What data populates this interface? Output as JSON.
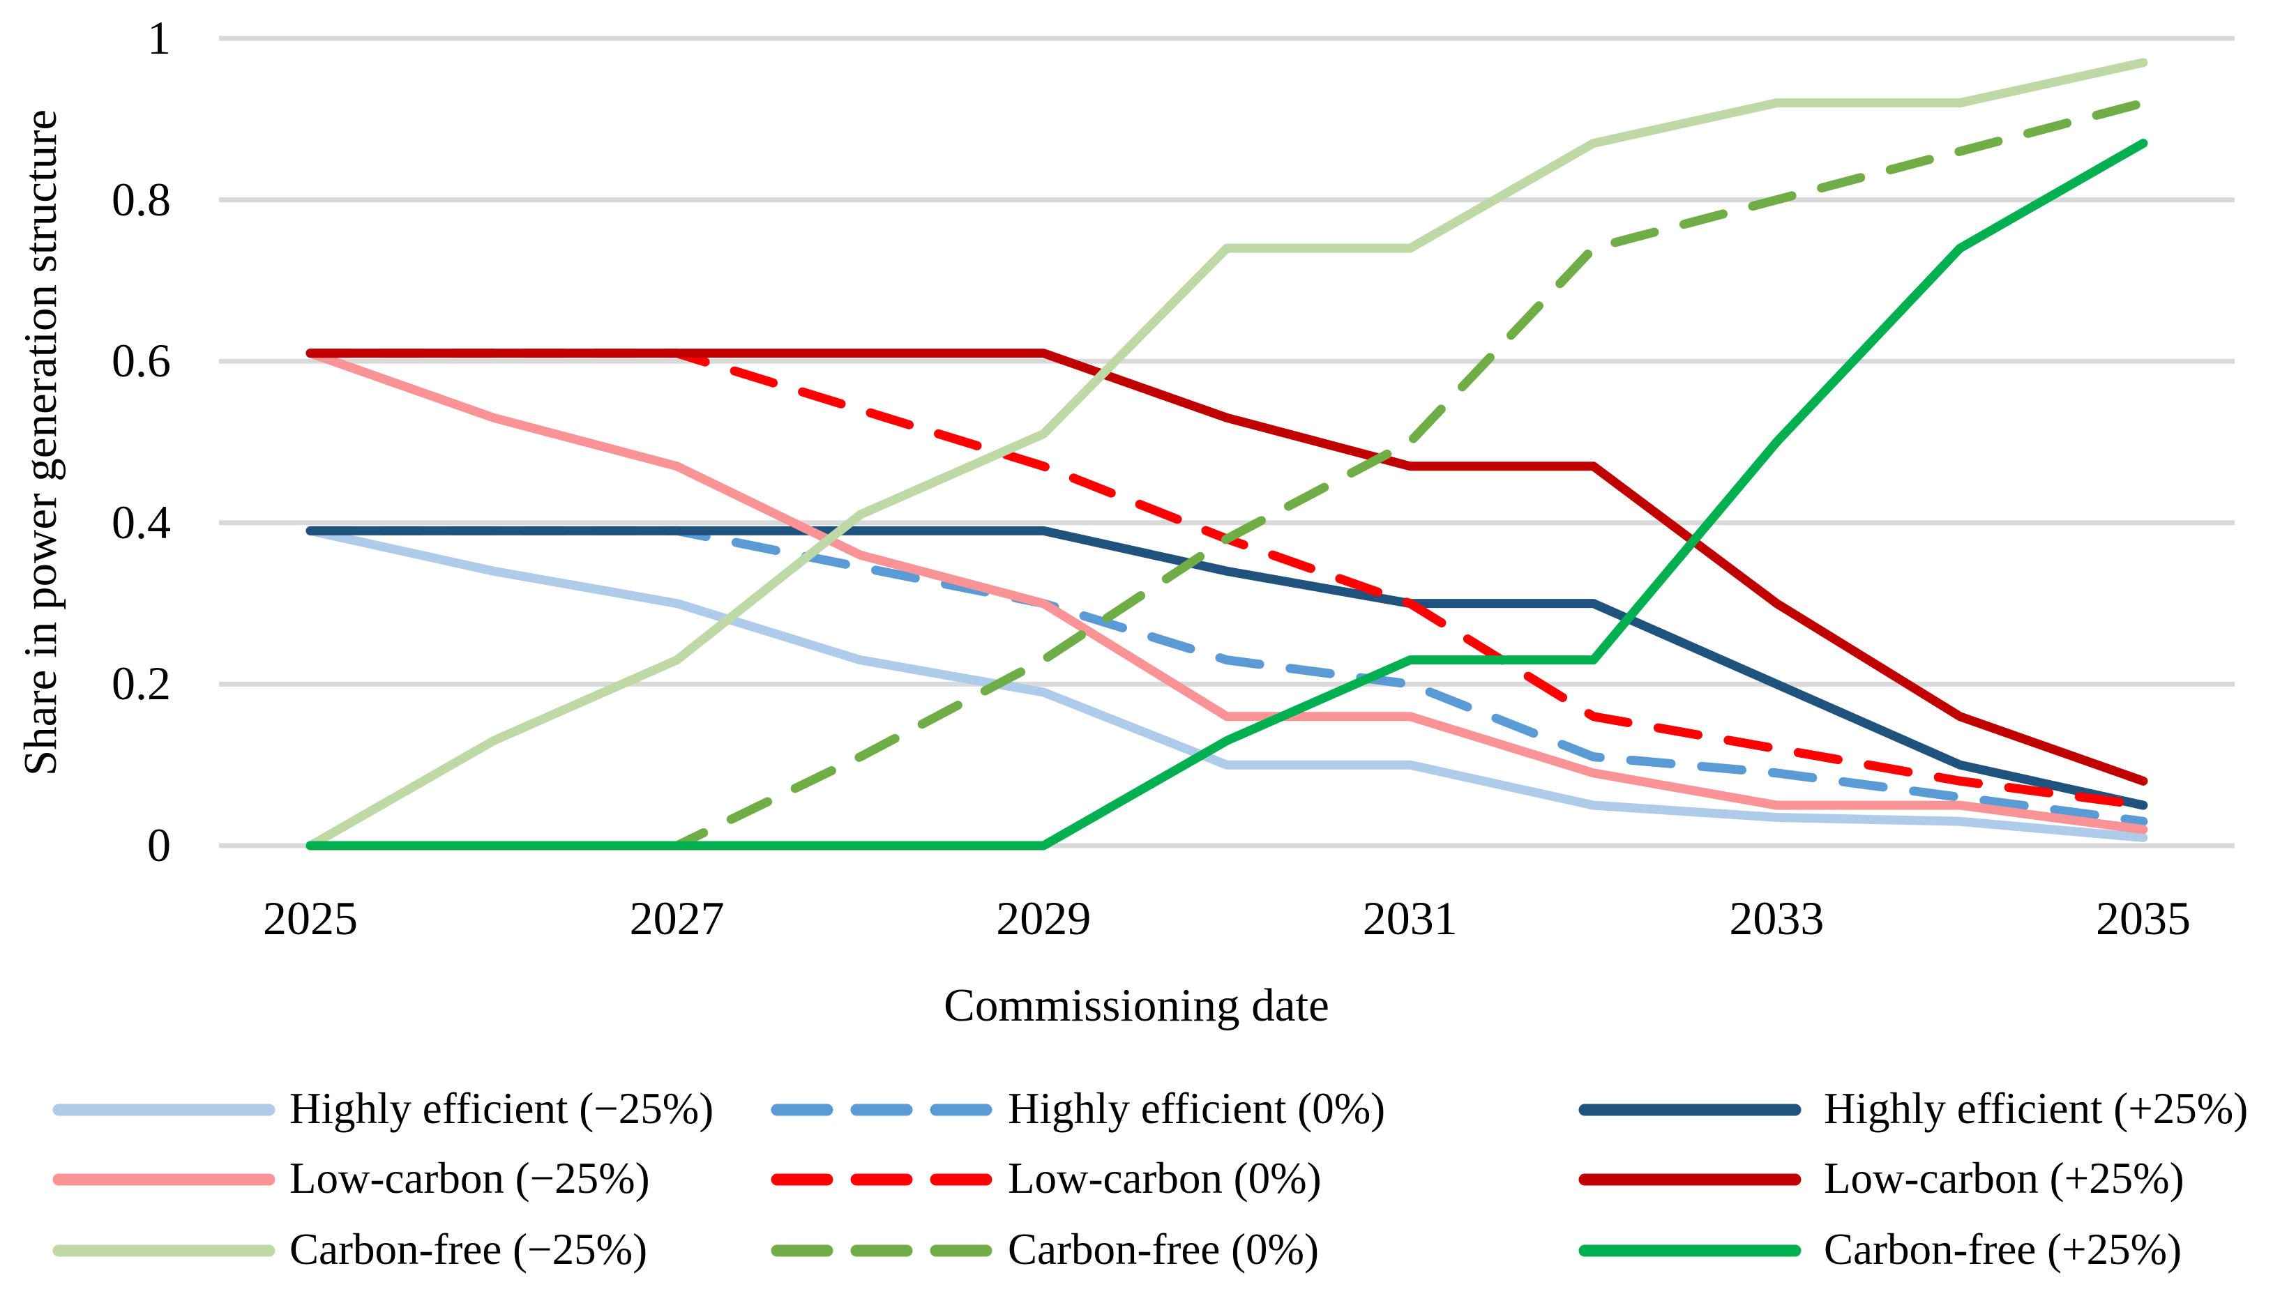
{
  "chart_data": {
    "type": "line",
    "xlabel": "Commissioning date",
    "ylabel": "Share in power generation structure",
    "x": [
      2025,
      2026,
      2027,
      2028,
      2029,
      2030,
      2031,
      2032,
      2033,
      2034,
      2035
    ],
    "xtick_labels": [
      "2025",
      "2027",
      "2029",
      "2031",
      "2033",
      "2035"
    ],
    "xtick_values": [
      2025,
      2027,
      2029,
      2031,
      2033,
      2035
    ],
    "ytick_labels": [
      "0",
      "0.2",
      "0.4",
      "0.6",
      "0.8",
      "1"
    ],
    "ytick_values": [
      0,
      0.2,
      0.4,
      0.6,
      0.8,
      1
    ],
    "ylim": [
      0,
      1
    ],
    "grid": "horizontal",
    "gridline_color": "#D9D9D9",
    "legend_position": "bottom-3-columns",
    "series": [
      {
        "name": "Highly efficient (−25%)",
        "color": "#AECBE9",
        "style": "solid",
        "values": [
          0.39,
          0.34,
          0.3,
          0.23,
          0.19,
          0.1,
          0.1,
          0.05,
          0.035,
          0.03,
          0.01
        ]
      },
      {
        "name": "Highly efficient (0%)",
        "color": "#5B9BD5",
        "style": "dashed",
        "values": [
          0.39,
          0.39,
          0.39,
          0.345,
          0.3,
          0.23,
          0.2,
          0.11,
          0.09,
          0.06,
          0.03
        ]
      },
      {
        "name": "Highly efficient (+25%)",
        "color": "#20527E",
        "style": "solid",
        "values": [
          0.39,
          0.39,
          0.39,
          0.39,
          0.39,
          0.34,
          0.3,
          0.3,
          0.2,
          0.1,
          0.05
        ]
      },
      {
        "name": "Low-carbon (−25%)",
        "color": "#FA9396",
        "style": "solid",
        "values": [
          0.61,
          0.53,
          0.47,
          0.36,
          0.3,
          0.16,
          0.16,
          0.09,
          0.05,
          0.05,
          0.02
        ]
      },
      {
        "name": "Low-carbon (0%)",
        "color": "#FF0000",
        "style": "dashed",
        "values": [
          0.61,
          0.61,
          0.61,
          0.54,
          0.47,
          0.38,
          0.3,
          0.16,
          0.12,
          0.08,
          0.05
        ]
      },
      {
        "name": "Low-carbon (+25%)",
        "color": "#C00000",
        "style": "solid",
        "values": [
          0.61,
          0.61,
          0.61,
          0.61,
          0.61,
          0.53,
          0.47,
          0.47,
          0.3,
          0.16,
          0.08
        ]
      },
      {
        "name": "Carbon-free (−25%)",
        "color": "#BED9A6",
        "style": "solid",
        "values": [
          0.0,
          0.13,
          0.23,
          0.41,
          0.51,
          0.74,
          0.74,
          0.87,
          0.92,
          0.92,
          0.97
        ]
      },
      {
        "name": "Carbon-free (0%)",
        "color": "#70AD47",
        "style": "dashed",
        "values": [
          0.0,
          0.0,
          0.0,
          0.11,
          0.23,
          0.38,
          0.5,
          0.74,
          0.8,
          0.86,
          0.92
        ]
      },
      {
        "name": "Carbon-free (+25%)",
        "color": "#00B050",
        "style": "solid",
        "values": [
          0.0,
          0.0,
          0.0,
          0.0,
          0.0,
          0.13,
          0.23,
          0.23,
          0.5,
          0.74,
          0.87
        ]
      }
    ]
  }
}
